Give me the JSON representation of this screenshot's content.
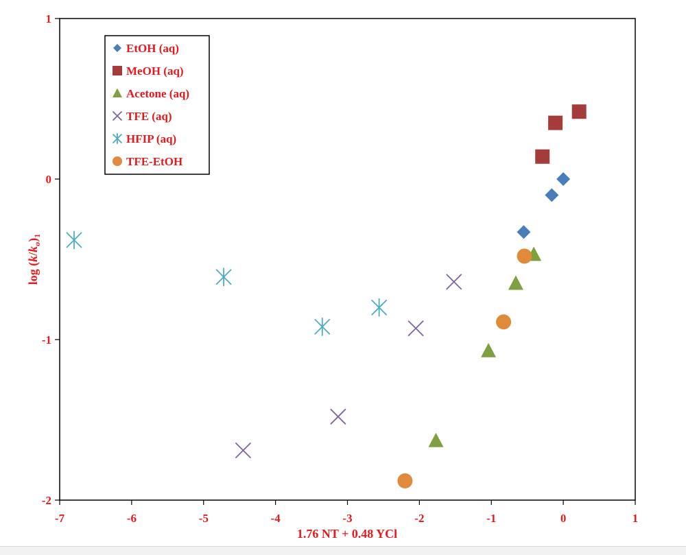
{
  "chart_data": {
    "type": "scatter",
    "xlabel": "1.76 NT + 0.48 YCl",
    "ylabel_main": "log (",
    "ylabel_k": "k",
    "ylabel_slash": "/",
    "ylabel_ko": "k",
    "ylabel_o": "o",
    "ylabel_close": ")",
    "ylabel_sub": "1",
    "xlim": [
      -7,
      1
    ],
    "ylim": [
      -2,
      1
    ],
    "xticks": [
      -7,
      -6,
      -5,
      -4,
      -3,
      -2,
      -1,
      0,
      1
    ],
    "yticks": [
      1,
      0,
      -1,
      -2
    ],
    "grid": false,
    "legend_position": "top-left",
    "series": [
      {
        "name": "EtOH (aq)",
        "marker": "diamond",
        "color": "#4a7ebb",
        "points": [
          [
            0,
            0
          ],
          [
            -0.16,
            -0.1
          ],
          [
            -0.55,
            -0.33
          ]
        ]
      },
      {
        "name": "MeOH (aq)",
        "marker": "square",
        "color": "#a53b3b",
        "points": [
          [
            0.22,
            0.42
          ],
          [
            -0.11,
            0.35
          ],
          [
            -0.29,
            0.14
          ]
        ]
      },
      {
        "name": "Acetone (aq)",
        "marker": "triangle",
        "color": "#7ea040",
        "points": [
          [
            -0.41,
            -0.47
          ],
          [
            -0.66,
            -0.65
          ],
          [
            -1.04,
            -1.07
          ],
          [
            -1.77,
            -1.63
          ]
        ]
      },
      {
        "name": "TFE (aq)",
        "marker": "x",
        "color": "#8064a2",
        "points": [
          [
            -1.52,
            -0.64
          ],
          [
            -2.05,
            -0.93
          ],
          [
            -3.13,
            -1.48
          ],
          [
            -4.45,
            -1.69
          ]
        ]
      },
      {
        "name": "HFIP (aq)",
        "marker": "asterisk",
        "color": "#4bacc6",
        "points": [
          [
            -6.8,
            -0.38
          ],
          [
            -4.72,
            -0.61
          ],
          [
            -3.35,
            -0.92
          ],
          [
            -2.56,
            -0.8
          ]
        ]
      },
      {
        "name": "TFE-EtOH",
        "marker": "circle",
        "color": "#e08a3c",
        "points": [
          [
            -0.54,
            -0.48
          ],
          [
            -0.83,
            -0.89
          ],
          [
            -2.2,
            -1.88
          ]
        ]
      }
    ]
  }
}
